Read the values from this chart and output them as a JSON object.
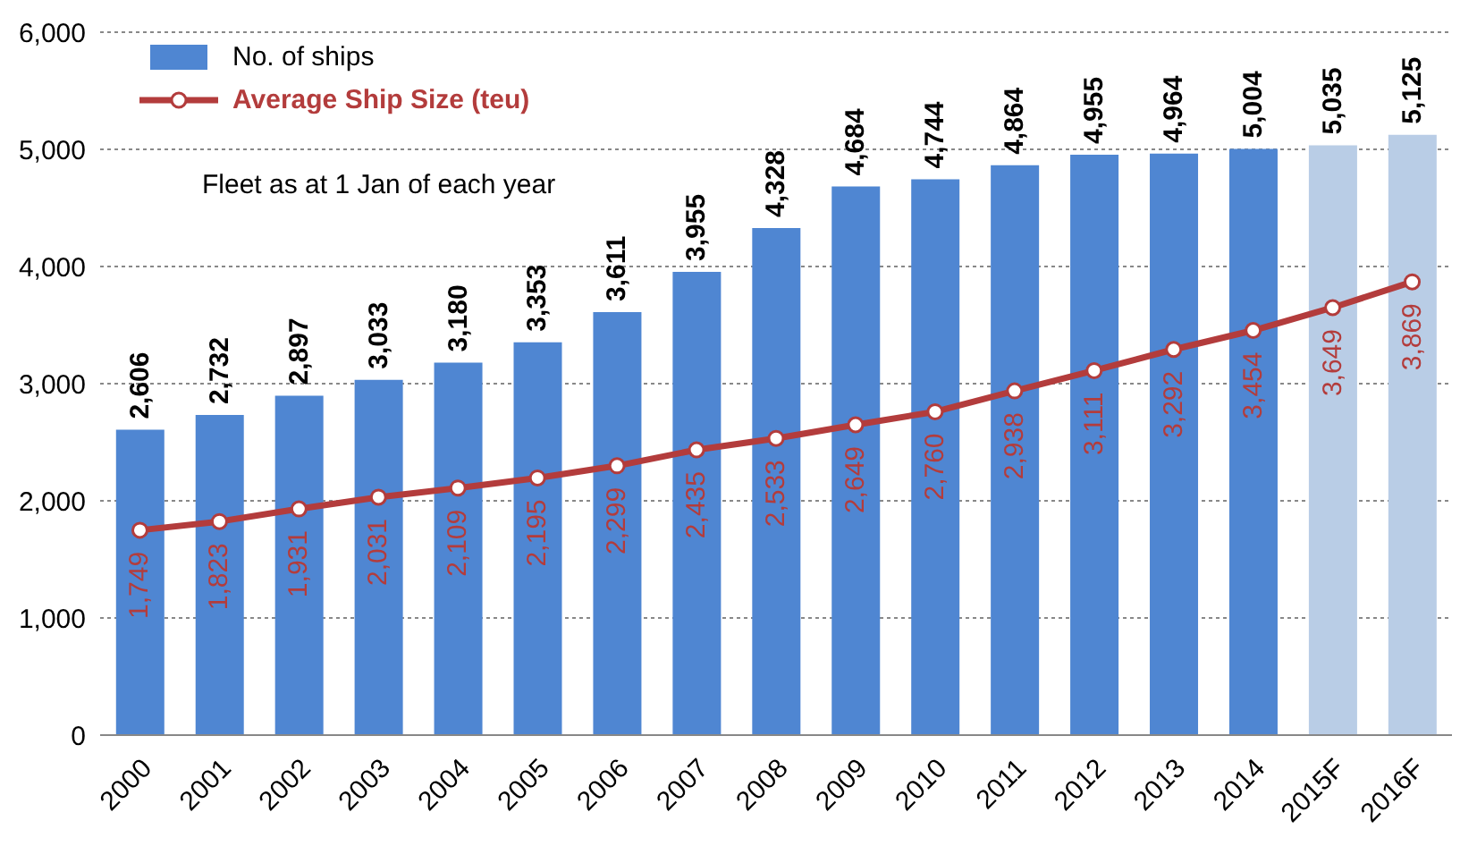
{
  "chart_data": {
    "type": "bar",
    "categories": [
      "2000",
      "2001",
      "2002",
      "2003",
      "2004",
      "2005",
      "2006",
      "2007",
      "2008",
      "2009",
      "2010",
      "2011",
      "2012",
      "2013",
      "2014",
      "2015F",
      "2016F"
    ],
    "series": [
      {
        "name": "No. of ships",
        "color": "#4f86d2",
        "colors": [
          "#4f86d2",
          "#4f86d2",
          "#4f86d2",
          "#4f86d2",
          "#4f86d2",
          "#4f86d2",
          "#4f86d2",
          "#4f86d2",
          "#4f86d2",
          "#4f86d2",
          "#4f86d2",
          "#4f86d2",
          "#4f86d2",
          "#4f86d2",
          "#4f86d2",
          "#b9cde6",
          "#b9cde6"
        ],
        "values": [
          2606,
          2732,
          2897,
          3033,
          3180,
          3353,
          3611,
          3955,
          4328,
          4684,
          4744,
          4864,
          4955,
          4964,
          5004,
          5035,
          5125
        ],
        "value_labels": [
          "2,606",
          "2,732",
          "2,897",
          "3,033",
          "3,180",
          "3,353",
          "3,611",
          "3,955",
          "4,328",
          "4,684",
          "4,744",
          "4,864",
          "4,955",
          "4,964",
          "5,004",
          "5,035",
          "5,125"
        ]
      },
      {
        "name": "Average Ship Size (teu)",
        "type": "line",
        "color": "#b33c3c",
        "values": [
          1749,
          1823,
          1931,
          2031,
          2109,
          2195,
          2299,
          2435,
          2533,
          2649,
          2760,
          2938,
          3111,
          3292,
          3454,
          3649,
          3869
        ],
        "value_labels": [
          "1,749",
          "1,823",
          "1,931",
          "2,031",
          "2,109",
          "2,195",
          "2,299",
          "2,435",
          "2,533",
          "2,649",
          "2,760",
          "2,938",
          "3,111",
          "3,292",
          "3,454",
          "3,649",
          "3,869"
        ]
      }
    ],
    "ylim": [
      0,
      6000
    ],
    "yticks": [
      0,
      {
        "value": 1000,
        "label": "1,000"
      },
      {
        "value": 2000,
        "label": "2,000"
      },
      {
        "value": 3000,
        "label": "3,000"
      },
      {
        "value": 4000,
        "label": "4,000"
      },
      {
        "value": 5000,
        "label": "5,000"
      },
      {
        "value": 6000,
        "label": "6,000"
      }
    ],
    "grid": "y",
    "legend": "top left",
    "marker": "circle",
    "annotations": [
      "Fleet as at 1 Jan of each year"
    ]
  }
}
